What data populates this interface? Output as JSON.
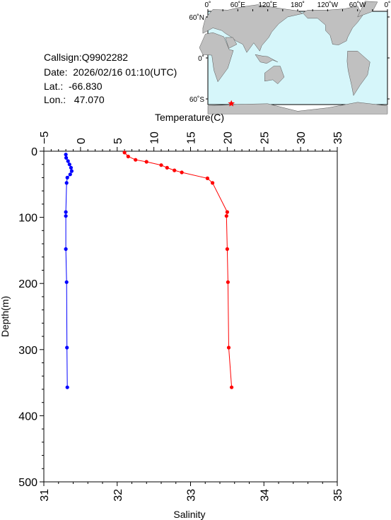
{
  "header": {
    "callsign": "Callsign:Q9902282",
    "date": "Date:  2026/02/16 01:10(UTC)",
    "lat": "Lat.:  -66.830",
    "lon": "Lon.:   47.070"
  },
  "map": {
    "top_labels": [
      "0˚",
      "60˚E",
      "120˚E",
      "180˚",
      "120˚W",
      "60˚W",
      "0˚"
    ],
    "lat_labels": [
      "60˚N",
      "0˚",
      "60˚S"
    ],
    "colors": {
      "ocean": "#d6f6fa",
      "land": "#c0c0c0",
      "marker": "#ff0000"
    },
    "marker": {
      "lon": 47.07,
      "lat": -66.83,
      "icon": "star-icon"
    }
  },
  "chart_data": {
    "type": "line",
    "title": "",
    "top_axis": {
      "label": "Temperature(C)",
      "lim": [
        -5,
        35
      ],
      "ticks": [
        "−5",
        "0",
        "5",
        "10",
        "15",
        "20",
        "25",
        "30",
        "35"
      ]
    },
    "bottom_axis": {
      "label": "Salinity",
      "lim": [
        31,
        35
      ],
      "ticks": [
        "31",
        "32",
        "33",
        "34",
        "35"
      ]
    },
    "left_axis": {
      "label": "Depth(m)",
      "lim": [
        0,
        500
      ],
      "inverted": true,
      "ticks": [
        "0",
        "100",
        "200",
        "300",
        "400",
        "500"
      ]
    },
    "grid": true,
    "series": [
      {
        "axis": "temperature",
        "color": "#0000ff",
        "depth": [
          5,
          10,
          15,
          20,
          25,
          30,
          35,
          40,
          48,
          92,
          98,
          148,
          198,
          297,
          357
        ],
        "values": [
          -2.0,
          -1.95,
          -1.7,
          -1.5,
          -1.3,
          -1.2,
          -1.4,
          -1.8,
          -1.9,
          -2.0,
          -2.0,
          -2.0,
          -1.9,
          -1.85,
          -1.8
        ]
      },
      {
        "axis": "salinity",
        "color": "#ff0000",
        "depth": [
          2,
          8,
          13,
          16,
          21,
          25,
          29,
          32,
          41,
          48,
          92,
          98,
          148,
          198,
          297,
          357
        ],
        "values": [
          32.1,
          32.15,
          32.25,
          32.4,
          32.6,
          32.68,
          32.78,
          32.88,
          33.23,
          33.3,
          33.5,
          33.49,
          33.5,
          33.51,
          33.52,
          33.56
        ]
      }
    ]
  }
}
